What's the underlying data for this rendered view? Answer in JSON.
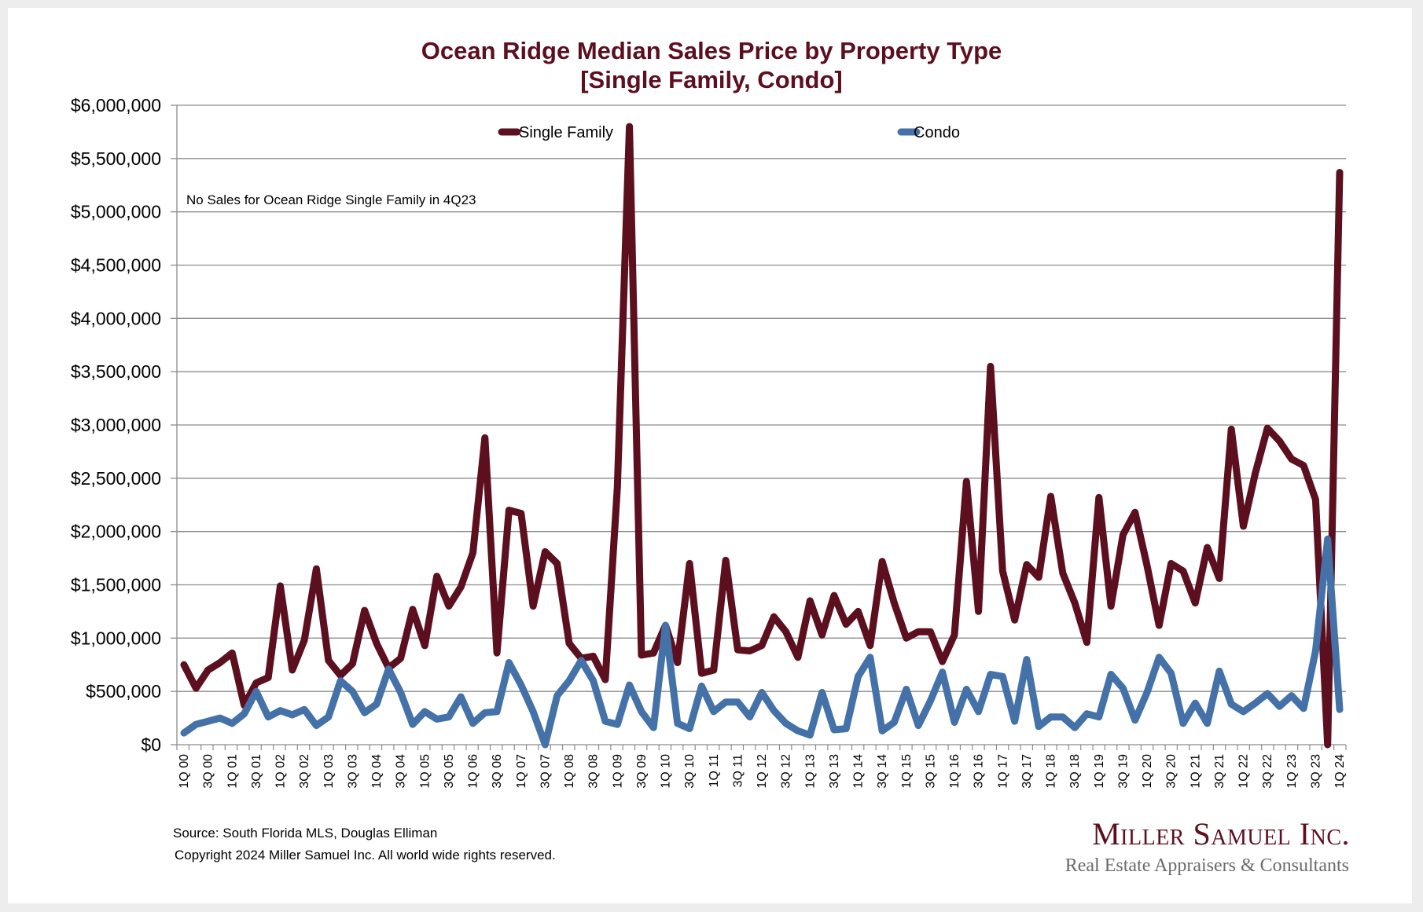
{
  "chart_data": {
    "type": "line",
    "title": "Ocean Ridge Median Sales Price by Property Type",
    "subtitle": "[Single Family, Condo]",
    "xlabel": "",
    "ylabel": "",
    "ylim": [
      0,
      6000000
    ],
    "yticks": [
      0,
      500000,
      1000000,
      1500000,
      2000000,
      2500000,
      3000000,
      3500000,
      4000000,
      4500000,
      5000000,
      5500000,
      6000000
    ],
    "ytick_labels": [
      "$0",
      "$500,000",
      "$1,000,000",
      "$1,500,000",
      "$2,000,000",
      "$2,500,000",
      "$3,000,000",
      "$3,500,000",
      "$4,000,000",
      "$4,500,000",
      "$5,000,000",
      "$5,500,000",
      "$6,000,000"
    ],
    "grid": "horizontal",
    "legend_position": "top-center",
    "x": [
      "1Q 00",
      "2Q 00",
      "3Q 00",
      "4Q 00",
      "1Q 01",
      "2Q 01",
      "3Q 01",
      "4Q 01",
      "1Q 02",
      "2Q 02",
      "3Q 02",
      "4Q 02",
      "1Q 03",
      "2Q 03",
      "3Q 03",
      "4Q 03",
      "1Q 04",
      "2Q 04",
      "3Q 04",
      "4Q 04",
      "1Q 05",
      "2Q 05",
      "3Q 05",
      "4Q 05",
      "1Q 06",
      "2Q 06",
      "3Q 06",
      "4Q 06",
      "1Q 07",
      "2Q 07",
      "3Q 07",
      "4Q 07",
      "1Q 08",
      "2Q 08",
      "3Q 08",
      "4Q 08",
      "1Q 09",
      "2Q 09",
      "3Q 09",
      "4Q 09",
      "1Q 10",
      "2Q 10",
      "3Q 10",
      "4Q 10",
      "1Q 11",
      "2Q 11",
      "3Q 11",
      "4Q 11",
      "1Q 12",
      "2Q 12",
      "3Q 12",
      "4Q 12",
      "1Q 13",
      "2Q 13",
      "3Q 13",
      "4Q 13",
      "1Q 14",
      "2Q 14",
      "3Q 14",
      "4Q 14",
      "1Q 15",
      "2Q 15",
      "3Q 15",
      "4Q 15",
      "1Q 16",
      "2Q 16",
      "3Q 16",
      "4Q 16",
      "1Q 17",
      "2Q 17",
      "3Q 17",
      "4Q 17",
      "1Q 18",
      "2Q 18",
      "3Q 18",
      "4Q 18",
      "1Q 19",
      "2Q 19",
      "3Q 19",
      "4Q 19",
      "1Q 20",
      "2Q 20",
      "3Q 20",
      "4Q 20",
      "1Q 21",
      "2Q 21",
      "3Q 21",
      "4Q 21",
      "1Q 22",
      "2Q 22",
      "3Q 22",
      "4Q 22",
      "1Q 23",
      "2Q 23",
      "3Q 23",
      "4Q 23",
      "1Q 24"
    ],
    "xtick_labels_shown_every": 2,
    "series": [
      {
        "name": "Single Family",
        "color": "#5c0f1e",
        "values": [
          750000,
          530000,
          700000,
          770000,
          860000,
          370000,
          580000,
          630000,
          1490000,
          700000,
          980000,
          1650000,
          790000,
          650000,
          760000,
          1260000,
          950000,
          720000,
          810000,
          1270000,
          930000,
          1580000,
          1300000,
          1480000,
          1800000,
          2880000,
          860000,
          2200000,
          2170000,
          1300000,
          1810000,
          1700000,
          950000,
          810000,
          830000,
          610000,
          2420000,
          5800000,
          840000,
          860000,
          1120000,
          770000,
          1700000,
          670000,
          700000,
          1730000,
          890000,
          880000,
          930000,
          1200000,
          1060000,
          820000,
          1350000,
          1030000,
          1400000,
          1130000,
          1250000,
          930000,
          1720000,
          1330000,
          1000000,
          1060000,
          1060000,
          780000,
          1030000,
          2470000,
          1250000,
          3550000,
          1630000,
          1170000,
          1690000,
          1570000,
          2330000,
          1610000,
          1330000,
          960000,
          2320000,
          1300000,
          1970000,
          2180000,
          1680000,
          1120000,
          1700000,
          1630000,
          1330000,
          1850000,
          1560000,
          2960000,
          2050000,
          2550000,
          2970000,
          2850000,
          2680000,
          2620000,
          2300000,
          0,
          5370000
        ]
      },
      {
        "name": "Condo",
        "color": "#4472a8",
        "values": [
          110000,
          190000,
          220000,
          250000,
          200000,
          290000,
          500000,
          260000,
          320000,
          280000,
          330000,
          180000,
          260000,
          600000,
          500000,
          300000,
          380000,
          710000,
          490000,
          190000,
          310000,
          240000,
          260000,
          450000,
          200000,
          300000,
          310000,
          770000,
          560000,
          310000,
          0,
          460000,
          600000,
          790000,
          600000,
          220000,
          190000,
          560000,
          310000,
          160000,
          1120000,
          200000,
          150000,
          550000,
          310000,
          400000,
          400000,
          260000,
          490000,
          320000,
          200000,
          130000,
          90000,
          490000,
          140000,
          150000,
          640000,
          820000,
          130000,
          210000,
          520000,
          180000,
          410000,
          680000,
          210000,
          520000,
          310000,
          660000,
          640000,
          220000,
          800000,
          170000,
          260000,
          260000,
          160000,
          290000,
          260000,
          660000,
          530000,
          230000,
          490000,
          820000,
          670000,
          200000,
          390000,
          200000,
          690000,
          380000,
          310000,
          390000,
          480000,
          360000,
          460000,
          340000,
          880000,
          1930000,
          330000
        ]
      }
    ],
    "annotations": [
      "No Sales for Ocean Ridge Single Family in 4Q23"
    ]
  },
  "footer": {
    "source": "Source: South Florida MLS, Douglas Elliman",
    "copyright": "Copyright 2024 Miller Samuel Inc.  All world wide rights reserved."
  },
  "logo": {
    "name": "Miller Samuel Inc.",
    "tagline": "Real Estate Appraisers & Consultants"
  }
}
